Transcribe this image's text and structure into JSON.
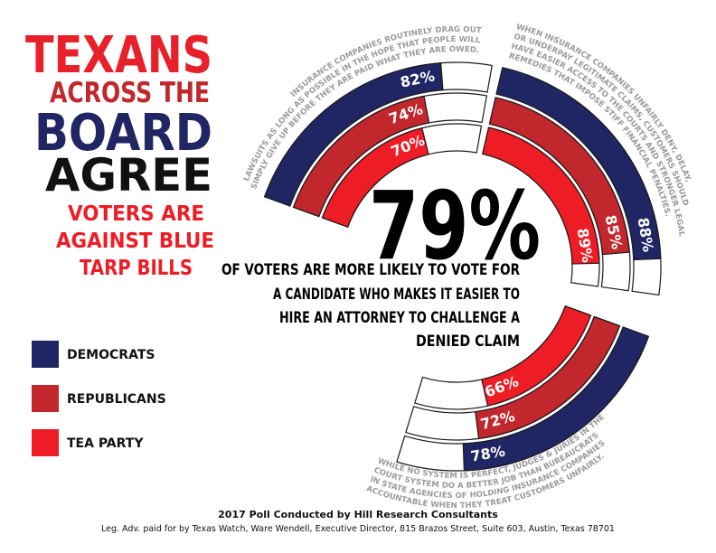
{
  "header": {
    "title_lines": [
      "TEXANS",
      "ACROSS THE",
      "BOARD",
      "AGREE"
    ],
    "subtitle_lines": [
      "VOTERS ARE",
      "AGAINST BLUE",
      "TARP BILLS"
    ]
  },
  "chart_data": {
    "type": "radial-bar",
    "headline": "79%",
    "headline_text": [
      "OF VOTERS ARE MORE LIKELY TO VOTE FOR",
      "A CANDIDATE WHO MAKES IT EASIER TO",
      "HIRE AN ATTORNEY TO CHALLENGE A",
      "DENIED CLAIM"
    ],
    "statements": [
      [
        "INSURANCE COMPANIES ROUTINELY DRAG OUT",
        "LAWSUITS AS LONG AS POSSIBLE IN THE HOPE THAT PEOPLE WILL",
        "SIMPLY GIVE UP BEFORE THEY ARE PAID WHAT THEY ARE OWED."
      ],
      [
        "WHEN INSURANCE COMPANIES UNFAIRLY DENY, DELAY,",
        "OR UNDERPAY LEGITIMATE CLAIMS, CUSTOMERS SHOULD",
        "HAVE EASIER ACCESS TO THE COURTS AND STRONGER LEGAL",
        "REMEDIES THAT IMPOSE STIFF FINANCIAL PENALTIES."
      ],
      [
        "WHILE NO SYSTEM IS PERFECT, JUDGES & JURIES IN THE",
        "COURT SYSTEM DO A BETTER JOB THAN BUREAUCRATS",
        "IN STATE AGENCIES OF HOLDING INSURANCE COMPANIES",
        "ACCOUNTABLE WHEN THEY TREAT CUSTOMERS UNFAIRLY."
      ]
    ],
    "series": [
      {
        "name": "DEMOCRATS",
        "color": "#202663",
        "values": [
          82,
          88,
          78
        ],
        "value_labels": [
          "82%",
          "88%",
          "78%"
        ]
      },
      {
        "name": "REPUBLICANS",
        "color": "#c1272d",
        "values": [
          74,
          85,
          72
        ],
        "value_labels": [
          "74%",
          "85%",
          "72%"
        ]
      },
      {
        "name": "TEA PARTY",
        "color": "#ee1c25",
        "values": [
          70,
          89,
          66
        ],
        "value_labels": [
          "70%",
          "89%",
          "66%"
        ]
      }
    ],
    "ylim": [
      0,
      100
    ]
  },
  "footer": {
    "source": "2017 Poll Conducted by Hill Research Consultants",
    "disclaimer": "Leg. Adv. paid for by Texas Watch, Ware Wendell, Executive Director, 815 Brazos Street, Suite 603, Austin, Texas 78701"
  }
}
